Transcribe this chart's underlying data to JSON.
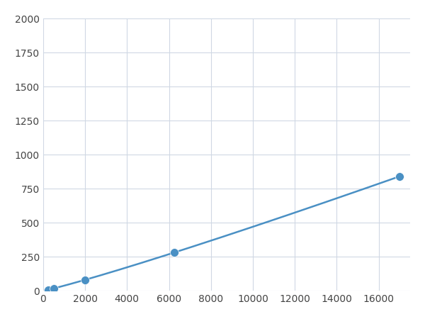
{
  "x_data": [
    250,
    500,
    1000,
    2000,
    6250,
    17000
  ],
  "y_data": [
    10,
    18,
    30,
    80,
    250,
    1000
  ],
  "marker_x": [
    250,
    500,
    2000,
    6250,
    17000
  ],
  "marker_y": [
    10,
    18,
    80,
    250,
    1000
  ],
  "line_color": "#4a90c4",
  "marker_color": "#4a90c4",
  "marker_size": 7,
  "xlim": [
    0,
    17500
  ],
  "ylim": [
    0,
    2000
  ],
  "xticks": [
    0,
    2000,
    4000,
    6000,
    8000,
    10000,
    12000,
    14000,
    16000
  ],
  "yticks": [
    0,
    250,
    500,
    750,
    1000,
    1250,
    1500,
    1750,
    2000
  ],
  "grid_color": "#d0d8e4",
  "background_color": "#ffffff",
  "figsize": [
    6.0,
    4.5
  ],
  "dpi": 100
}
